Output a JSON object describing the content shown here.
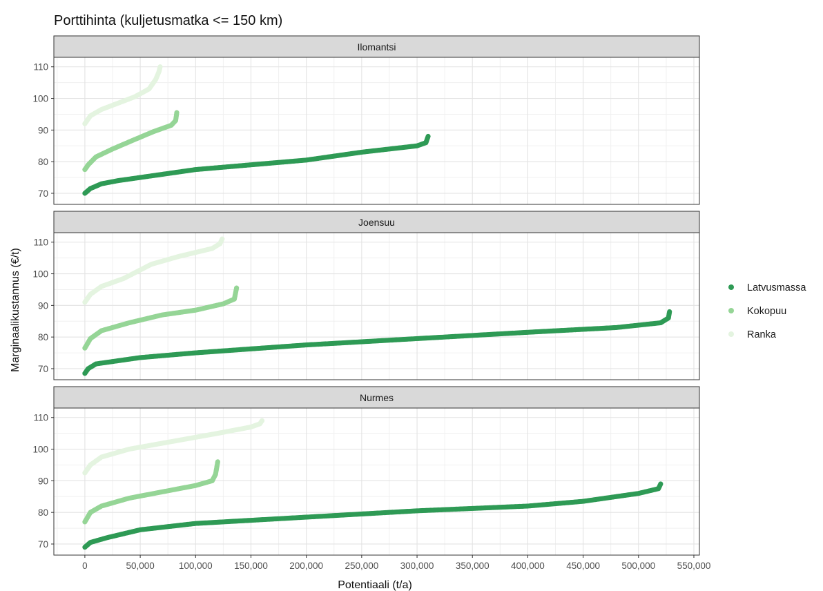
{
  "chart_data": {
    "type": "scatter",
    "title": "Porttihinta (kuljetusmatka <= 150 km)",
    "xlabel": "Potentiaali (t/a)",
    "ylabel": "Marginaalikustannus (€/t)",
    "xlim": [
      -28000,
      555000
    ],
    "ylim": [
      66.5,
      113
    ],
    "x_ticks": [
      0,
      50000,
      100000,
      150000,
      200000,
      250000,
      300000,
      350000,
      400000,
      450000,
      500000,
      550000
    ],
    "x_tick_labels": [
      "0",
      "50,000",
      "100,000",
      "150,000",
      "200,000",
      "250,000",
      "300,000",
      "350,000",
      "400,000",
      "450,000",
      "500,000",
      "550,000"
    ],
    "y_ticks": [
      70,
      80,
      90,
      100,
      110
    ],
    "y_tick_labels": [
      "70",
      "80",
      "90",
      "100",
      "110"
    ],
    "grid": true,
    "legend_position": "right",
    "legend": [
      {
        "label": "Latvusmassa",
        "color": "#2e9a55"
      },
      {
        "label": "Kokopuu",
        "color": "#95d596"
      },
      {
        "label": "Ranka",
        "color": "#e4f4e0"
      }
    ],
    "panels": [
      {
        "title": "Ilomantsi",
        "series": [
          {
            "name": "Ranka",
            "points": [
              [
                0,
                92
              ],
              [
                5000,
                94.5
              ],
              [
                15000,
                96.5
              ],
              [
                30000,
                98.5
              ],
              [
                45000,
                100.5
              ],
              [
                58000,
                103
              ],
              [
                64000,
                106
              ],
              [
                67000,
                108.5
              ],
              [
                68000,
                110
              ]
            ]
          },
          {
            "name": "Kokopuu",
            "points": [
              [
                0,
                77.5
              ],
              [
                3000,
                79
              ],
              [
                10000,
                81.5
              ],
              [
                25000,
                84
              ],
              [
                45000,
                87
              ],
              [
                62000,
                89.5
              ],
              [
                78000,
                91.5
              ],
              [
                82000,
                93
              ],
              [
                83000,
                95.5
              ]
            ]
          },
          {
            "name": "Latvusmassa",
            "points": [
              [
                0,
                70
              ],
              [
                5000,
                71.5
              ],
              [
                15000,
                73
              ],
              [
                30000,
                74
              ],
              [
                60000,
                75.5
              ],
              [
                100000,
                77.5
              ],
              [
                150000,
                79
              ],
              [
                200000,
                80.5
              ],
              [
                250000,
                83
              ],
              [
                300000,
                85
              ],
              [
                308000,
                86
              ],
              [
                310000,
                88
              ]
            ]
          }
        ]
      },
      {
        "title": "Joensuu",
        "series": [
          {
            "name": "Ranka",
            "points": [
              [
                0,
                91
              ],
              [
                5000,
                93.5
              ],
              [
                15000,
                96
              ],
              [
                35000,
                98.5
              ],
              [
                60000,
                103
              ],
              [
                85000,
                105.5
              ],
              [
                115000,
                108
              ],
              [
                122000,
                109.5
              ],
              [
                124000,
                111
              ]
            ]
          },
          {
            "name": "Kokopuu",
            "points": [
              [
                0,
                76.5
              ],
              [
                5000,
                79.5
              ],
              [
                15000,
                82
              ],
              [
                40000,
                84.5
              ],
              [
                70000,
                87
              ],
              [
                100000,
                88.5
              ],
              [
                125000,
                90.5
              ],
              [
                135000,
                92
              ],
              [
                137000,
                95.5
              ]
            ]
          },
          {
            "name": "Latvusmassa",
            "points": [
              [
                0,
                68.5
              ],
              [
                3000,
                70
              ],
              [
                10000,
                71.5
              ],
              [
                50000,
                73.5
              ],
              [
                100000,
                75
              ],
              [
                200000,
                77.5
              ],
              [
                300000,
                79.5
              ],
              [
                400000,
                81.5
              ],
              [
                480000,
                83
              ],
              [
                520000,
                84.5
              ],
              [
                527000,
                86
              ],
              [
                528000,
                88
              ]
            ]
          }
        ]
      },
      {
        "title": "Nurmes",
        "series": [
          {
            "name": "Ranka",
            "points": [
              [
                0,
                92.5
              ],
              [
                5000,
                95
              ],
              [
                15000,
                97.5
              ],
              [
                40000,
                100
              ],
              [
                80000,
                102.5
              ],
              [
                120000,
                105
              ],
              [
                150000,
                107
              ],
              [
                158000,
                108
              ],
              [
                160000,
                109
              ]
            ]
          },
          {
            "name": "Kokopuu",
            "points": [
              [
                0,
                77
              ],
              [
                5000,
                80
              ],
              [
                15000,
                82
              ],
              [
                40000,
                84.5
              ],
              [
                70000,
                86.5
              ],
              [
                100000,
                88.5
              ],
              [
                115000,
                90
              ],
              [
                118000,
                92
              ],
              [
                120000,
                96
              ]
            ]
          },
          {
            "name": "Latvusmassa",
            "points": [
              [
                0,
                69
              ],
              [
                5000,
                70.5
              ],
              [
                20000,
                72
              ],
              [
                50000,
                74.5
              ],
              [
                100000,
                76.5
              ],
              [
                200000,
                78.5
              ],
              [
                300000,
                80.5
              ],
              [
                400000,
                82
              ],
              [
                450000,
                83.5
              ],
              [
                500000,
                86
              ],
              [
                518000,
                87.5
              ],
              [
                520000,
                89
              ]
            ]
          }
        ]
      }
    ]
  }
}
